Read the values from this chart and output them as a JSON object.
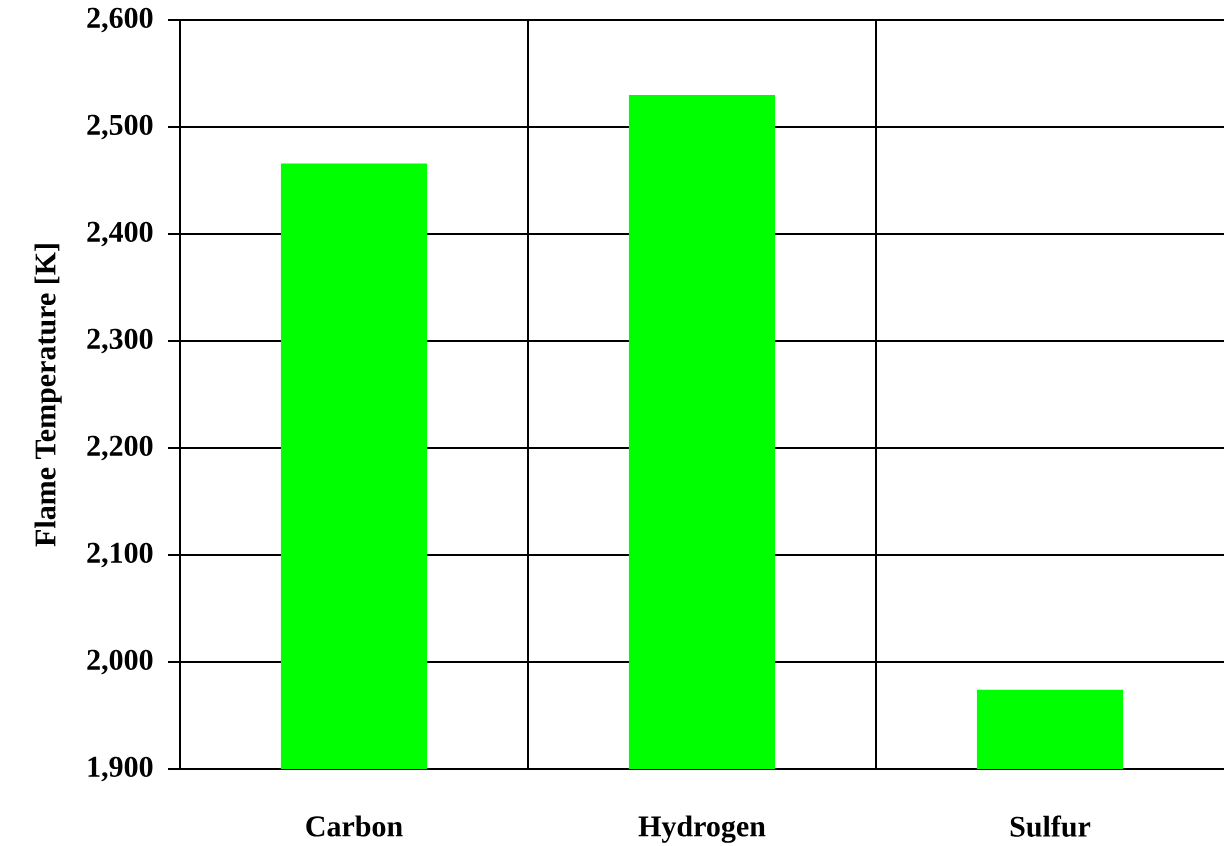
{
  "chart_data": {
    "type": "bar",
    "ylabel": "Flame Temperature [K]",
    "categories": [
      "Carbon",
      "Hydrogen",
      "Sulfur"
    ],
    "values": [
      2466,
      2530,
      1974
    ],
    "color": "#00ff00",
    "ylim": [
      1900,
      2600
    ],
    "yticks": [
      {
        "value": 1900,
        "label": "1,900"
      },
      {
        "value": 2000,
        "label": "2,000"
      },
      {
        "value": 2100,
        "label": "2,100"
      },
      {
        "value": 2200,
        "label": "2,200"
      },
      {
        "value": 2300,
        "label": "2,300"
      },
      {
        "value": 2400,
        "label": "2,400"
      },
      {
        "value": 2500,
        "label": "2,500"
      },
      {
        "value": 2600,
        "label": "2,600"
      }
    ],
    "grid": true
  }
}
